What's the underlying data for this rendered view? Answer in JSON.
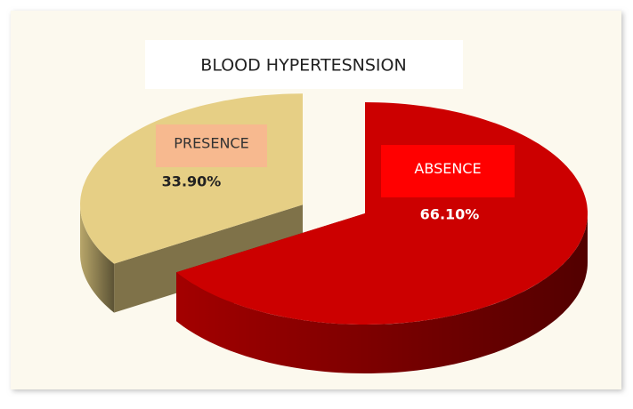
{
  "chart_data": {
    "type": "pie",
    "title": "BLOOD HYPERTESNSION",
    "categories": [
      "PRESENCE",
      "ABSENCE"
    ],
    "values": [
      33.9,
      66.1
    ],
    "value_labels": [
      "33.90%",
      "66.10%"
    ],
    "colors": [
      "#e6cf85",
      "#cc0000"
    ],
    "exploded": [
      true,
      false
    ]
  }
}
